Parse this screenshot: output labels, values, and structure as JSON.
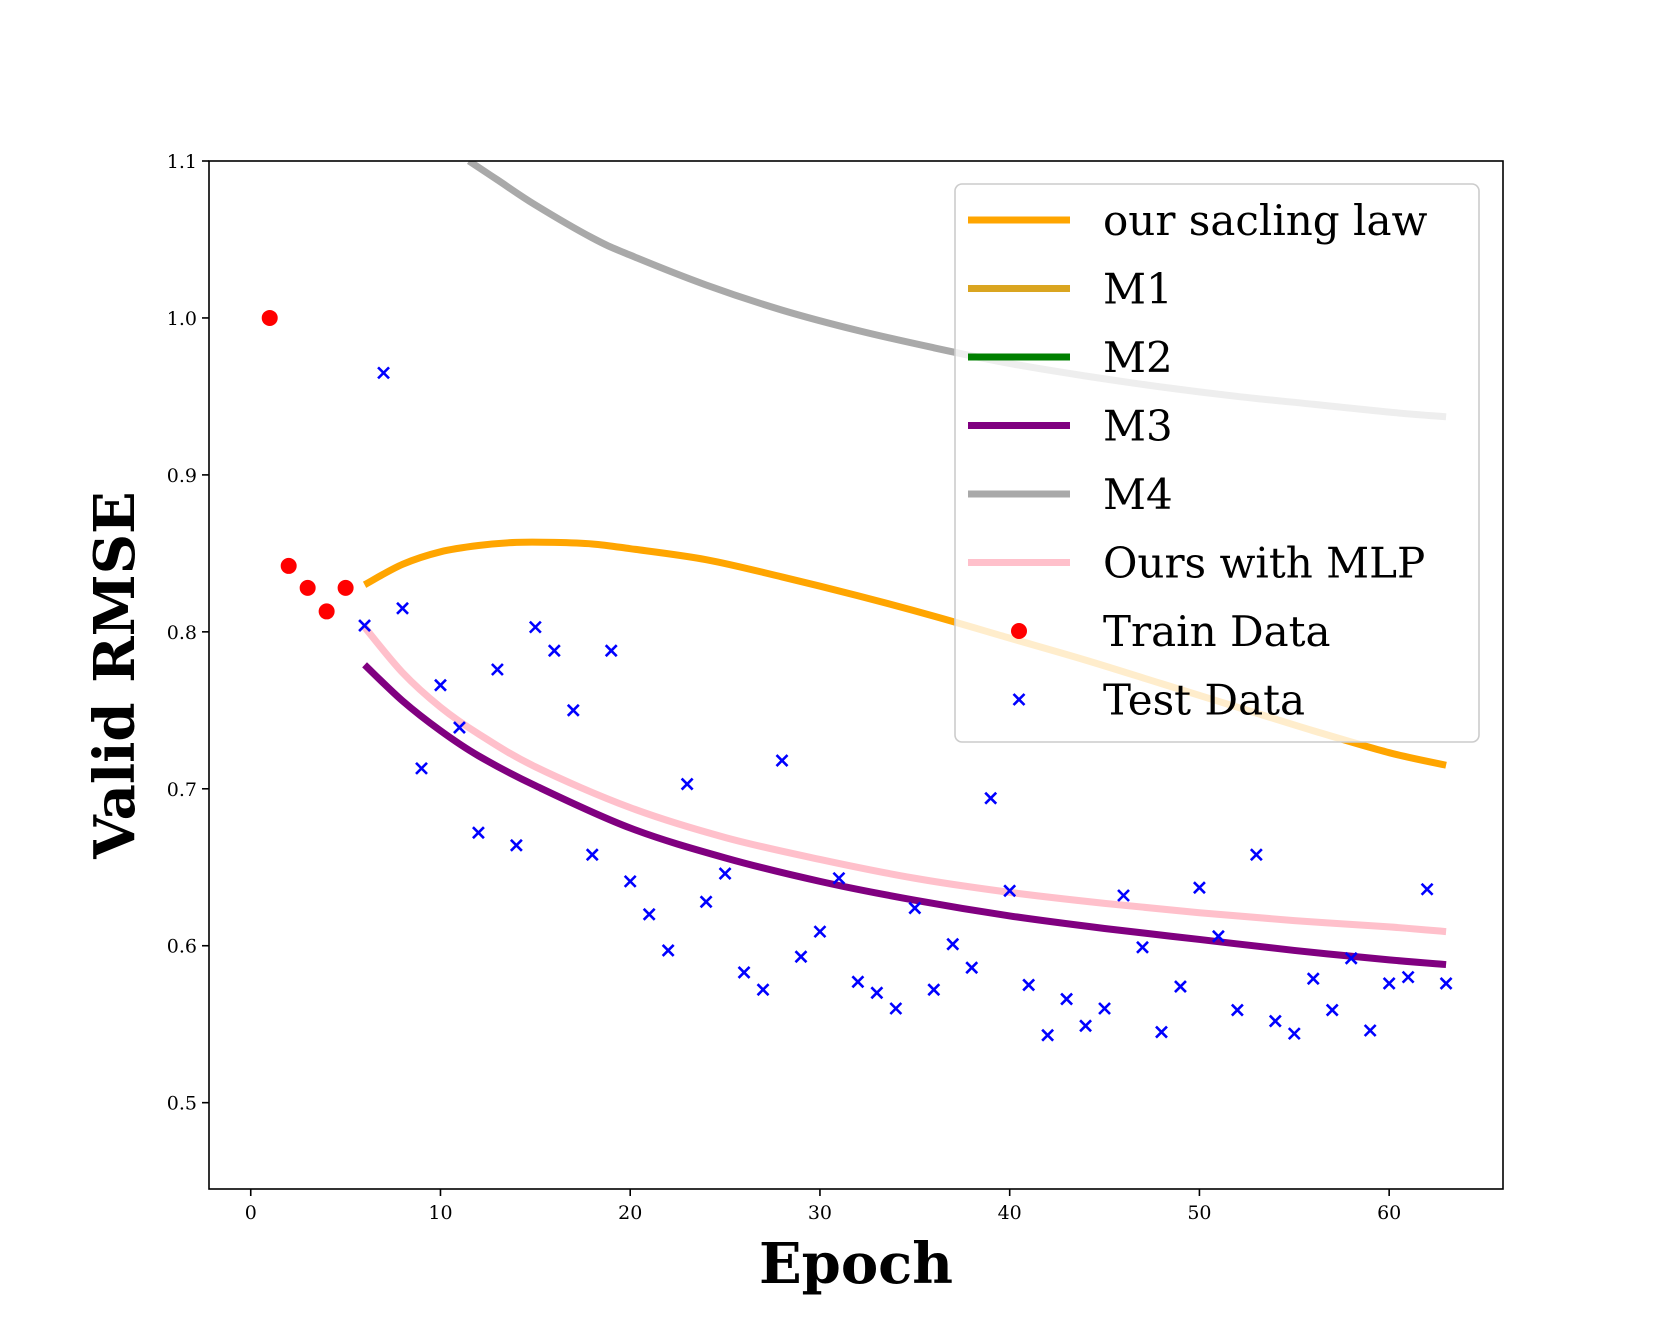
{
  "chart_data": {
    "type": "line",
    "title": "",
    "xlabel": "Epoch",
    "ylabel": "Valid RMSE",
    "xlim": [
      -2.2,
      66
    ],
    "ylim": [
      0.445,
      1.1
    ],
    "xticks": [
      0,
      10,
      20,
      30,
      40,
      50,
      60
    ],
    "xtick_labels": [
      "0",
      "10",
      "20",
      "30",
      "40",
      "50",
      "60"
    ],
    "yticks": [
      0.5,
      0.6,
      0.7,
      0.8,
      0.9,
      1.0,
      1.1
    ],
    "ytick_labels": [
      "0.5",
      "0.6",
      "0.7",
      "0.8",
      "0.9",
      "1.0",
      "1.1"
    ],
    "grid": false,
    "legend_position": "top-right",
    "series": [
      {
        "name": "our sacling law",
        "kind": "line",
        "color": "#FFA500",
        "x": [
          6,
          8,
          10,
          12,
          14,
          16,
          18,
          20,
          24,
          28,
          32,
          36,
          40,
          44,
          48,
          52,
          56,
          60,
          63
        ],
        "y": [
          0.83,
          0.843,
          0.851,
          0.855,
          0.857,
          0.857,
          0.856,
          0.853,
          0.846,
          0.835,
          0.823,
          0.81,
          0.796,
          0.782,
          0.767,
          0.752,
          0.737,
          0.723,
          0.715
        ]
      },
      {
        "name": "M1",
        "kind": "line",
        "color": "#DAA520",
        "x": [],
        "y": []
      },
      {
        "name": "M2",
        "kind": "line",
        "color": "#008000",
        "x": [],
        "y": []
      },
      {
        "name": "M3",
        "kind": "line",
        "color": "#800080",
        "x": [
          6,
          8,
          10,
          12,
          15,
          20,
          25,
          30,
          35,
          40,
          45,
          50,
          55,
          60,
          63
        ],
        "y": [
          0.779,
          0.756,
          0.737,
          0.721,
          0.702,
          0.675,
          0.656,
          0.641,
          0.629,
          0.619,
          0.611,
          0.604,
          0.597,
          0.591,
          0.588
        ]
      },
      {
        "name": "M4",
        "kind": "line",
        "color": "#A9A9A9",
        "x": [
          11.5,
          13,
          15,
          18,
          20,
          24,
          28,
          32,
          36,
          40,
          44,
          48,
          52,
          56,
          60,
          63
        ],
        "y": [
          1.1,
          1.088,
          1.072,
          1.051,
          1.04,
          1.021,
          1.005,
          0.992,
          0.981,
          0.971,
          0.963,
          0.956,
          0.95,
          0.945,
          0.94,
          0.937
        ]
      },
      {
        "name": "Ours with MLP",
        "kind": "line",
        "color": "#FFC0CB",
        "x": [
          6,
          8,
          10,
          12,
          15,
          20,
          25,
          30,
          35,
          40,
          45,
          50,
          55,
          60,
          63
        ],
        "y": [
          0.803,
          0.774,
          0.752,
          0.735,
          0.714,
          0.688,
          0.669,
          0.655,
          0.643,
          0.634,
          0.627,
          0.621,
          0.616,
          0.612,
          0.609
        ]
      },
      {
        "name": "Train Data",
        "kind": "scatter",
        "marker": "circle",
        "color": "#FF0000",
        "x": [
          1,
          2,
          3,
          4,
          5
        ],
        "y": [
          1.0,
          0.842,
          0.828,
          0.813,
          0.828
        ]
      },
      {
        "name": "Test Data",
        "kind": "scatter",
        "marker": "x",
        "color": "#0000FF",
        "x": [
          6,
          7,
          8,
          9,
          10,
          11,
          12,
          13,
          14,
          15,
          16,
          17,
          18,
          19,
          20,
          21,
          22,
          23,
          24,
          25,
          26,
          27,
          28,
          29,
          30,
          31,
          32,
          33,
          34,
          35,
          36,
          37,
          38,
          39,
          40,
          41,
          42,
          43,
          44,
          45,
          46,
          47,
          48,
          49,
          50,
          51,
          52,
          53,
          54,
          55,
          56,
          57,
          58,
          59,
          60,
          61,
          62,
          63
        ],
        "y": [
          0.804,
          0.965,
          0.815,
          0.713,
          0.766,
          0.739,
          0.672,
          0.776,
          0.664,
          0.803,
          0.788,
          0.75,
          0.658,
          0.788,
          0.641,
          0.62,
          0.597,
          0.703,
          0.628,
          0.646,
          0.583,
          0.572,
          0.718,
          0.593,
          0.609,
          0.643,
          0.577,
          0.57,
          0.56,
          0.624,
          0.572,
          0.601,
          0.586,
          0.694,
          0.635,
          0.575,
          0.543,
          0.566,
          0.549,
          0.56,
          0.632,
          0.599,
          0.545,
          0.574,
          0.637,
          0.606,
          0.559,
          0.658,
          0.552,
          0.544,
          0.579,
          0.559,
          0.592,
          0.546,
          0.576,
          0.58,
          0.636,
          0.576
        ]
      }
    ]
  }
}
